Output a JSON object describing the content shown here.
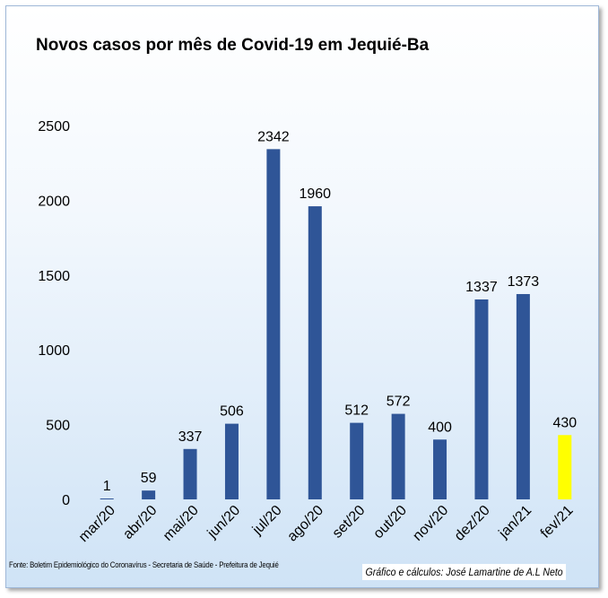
{
  "chart_data": {
    "type": "bar",
    "title": "Novos casos por mês de Covid-19 em Jequié-Ba",
    "categories": [
      "mar/20",
      "abr/20",
      "mai/20",
      "jun/20",
      "jul/20",
      "ago/20",
      "set/20",
      "out/20",
      "nov/20",
      "dez/20",
      "jan/21",
      "fev/21"
    ],
    "values": [
      1,
      59,
      337,
      506,
      2342,
      1960,
      512,
      572,
      400,
      1337,
      1373,
      430
    ],
    "ylim": [
      0,
      2500
    ],
    "yticks": [
      0,
      500,
      1000,
      1500,
      2000,
      2500
    ],
    "grid": false,
    "legend": "none",
    "bar_color": "#2f5597",
    "highlight_index": 11,
    "highlight_color": "#ffff00"
  },
  "footer": {
    "source": "Fonte: Boletim Epidemiológico do Coronavírus - Secretaria de Saúde - Prefeitura de Jequié",
    "credit": "Gráfico e cálculos: José Lamartine de A.L Neto"
  }
}
